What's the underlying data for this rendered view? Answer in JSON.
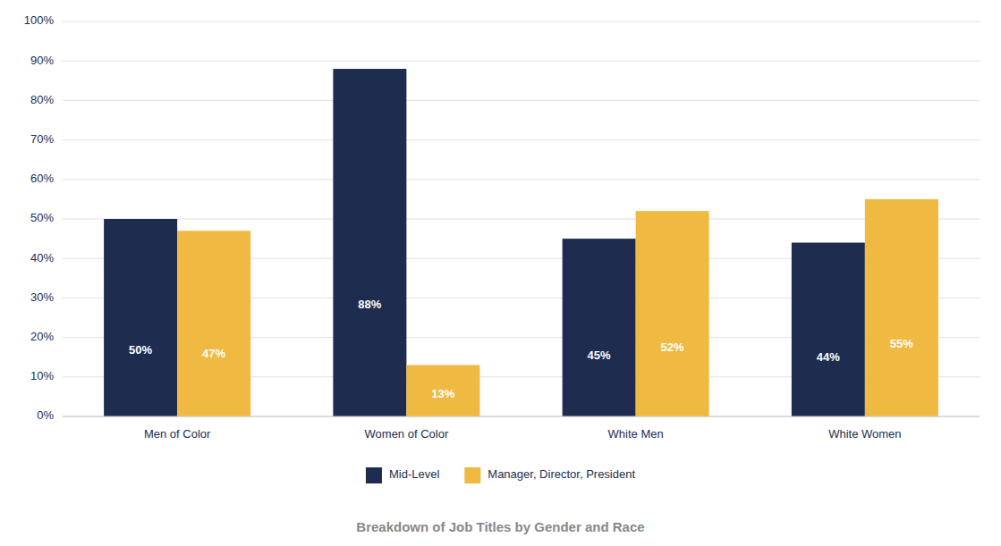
{
  "chart_data": {
    "type": "bar",
    "title": "Breakdown of Job Titles by Gender and Race",
    "categories": [
      "Men of Color",
      "Women of Color",
      "White Men",
      "White Women"
    ],
    "series": [
      {
        "name": "Mid-Level",
        "color": "#1e2d4f",
        "values": [
          50,
          88,
          45,
          44
        ],
        "value_labels": [
          "50%",
          "88%",
          "45%",
          "44%"
        ]
      },
      {
        "name": "Manager, Director, President",
        "color": "#f0b942",
        "values": [
          47,
          13,
          52,
          55
        ],
        "value_labels": [
          "47%",
          "13%",
          "52%",
          "55%"
        ]
      }
    ],
    "ylim": [
      0,
      100
    ],
    "yticks": [
      {
        "value": 0,
        "label": "0%"
      },
      {
        "value": 10,
        "label": "10%"
      },
      {
        "value": 20,
        "label": "20%"
      },
      {
        "value": 30,
        "label": "30%"
      },
      {
        "value": 40,
        "label": "40%"
      },
      {
        "value": 50,
        "label": "50%"
      },
      {
        "value": 60,
        "label": "60%"
      },
      {
        "value": 70,
        "label": "70%"
      },
      {
        "value": 80,
        "label": "80%"
      },
      {
        "value": 90,
        "label": "90%"
      },
      {
        "value": 100,
        "label": "100%"
      }
    ],
    "grid": true,
    "legend": "bottom",
    "data_labels": true
  }
}
